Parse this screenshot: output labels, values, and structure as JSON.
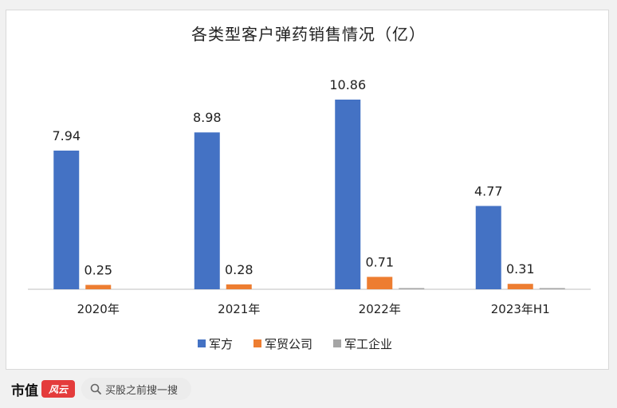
{
  "brand": {
    "name": "市值",
    "logo_text": "风云"
  },
  "search": {
    "placeholder": "买股之前搜一搜"
  },
  "colors": {
    "blue": "#4472c4",
    "orange": "#ed7d31",
    "gray": "#a5a5a5"
  },
  "chart_data": {
    "type": "bar",
    "title": "各类型客户弹药销售情况（亿）",
    "categories": [
      "2020年",
      "2021年",
      "2022年",
      "2023年H1"
    ],
    "series": [
      {
        "name": "军方",
        "color": "#4472c4",
        "values": [
          7.94,
          8.98,
          10.86,
          4.77
        ],
        "labels": [
          "7.94",
          "8.98",
          "10.86",
          "4.77"
        ]
      },
      {
        "name": "军贸公司",
        "color": "#ed7d31",
        "values": [
          0.25,
          0.28,
          0.71,
          0.31
        ],
        "labels": [
          "0.25",
          "0.28",
          "0.71",
          "0.31"
        ]
      },
      {
        "name": "军工企业",
        "color": "#a5a5a5",
        "values": [
          0,
          0,
          0.02,
          0.02
        ],
        "labels": [
          "",
          "",
          "",
          ""
        ]
      }
    ],
    "ylim": [
      0,
      12
    ],
    "grid": false,
    "legend": "bottom"
  }
}
